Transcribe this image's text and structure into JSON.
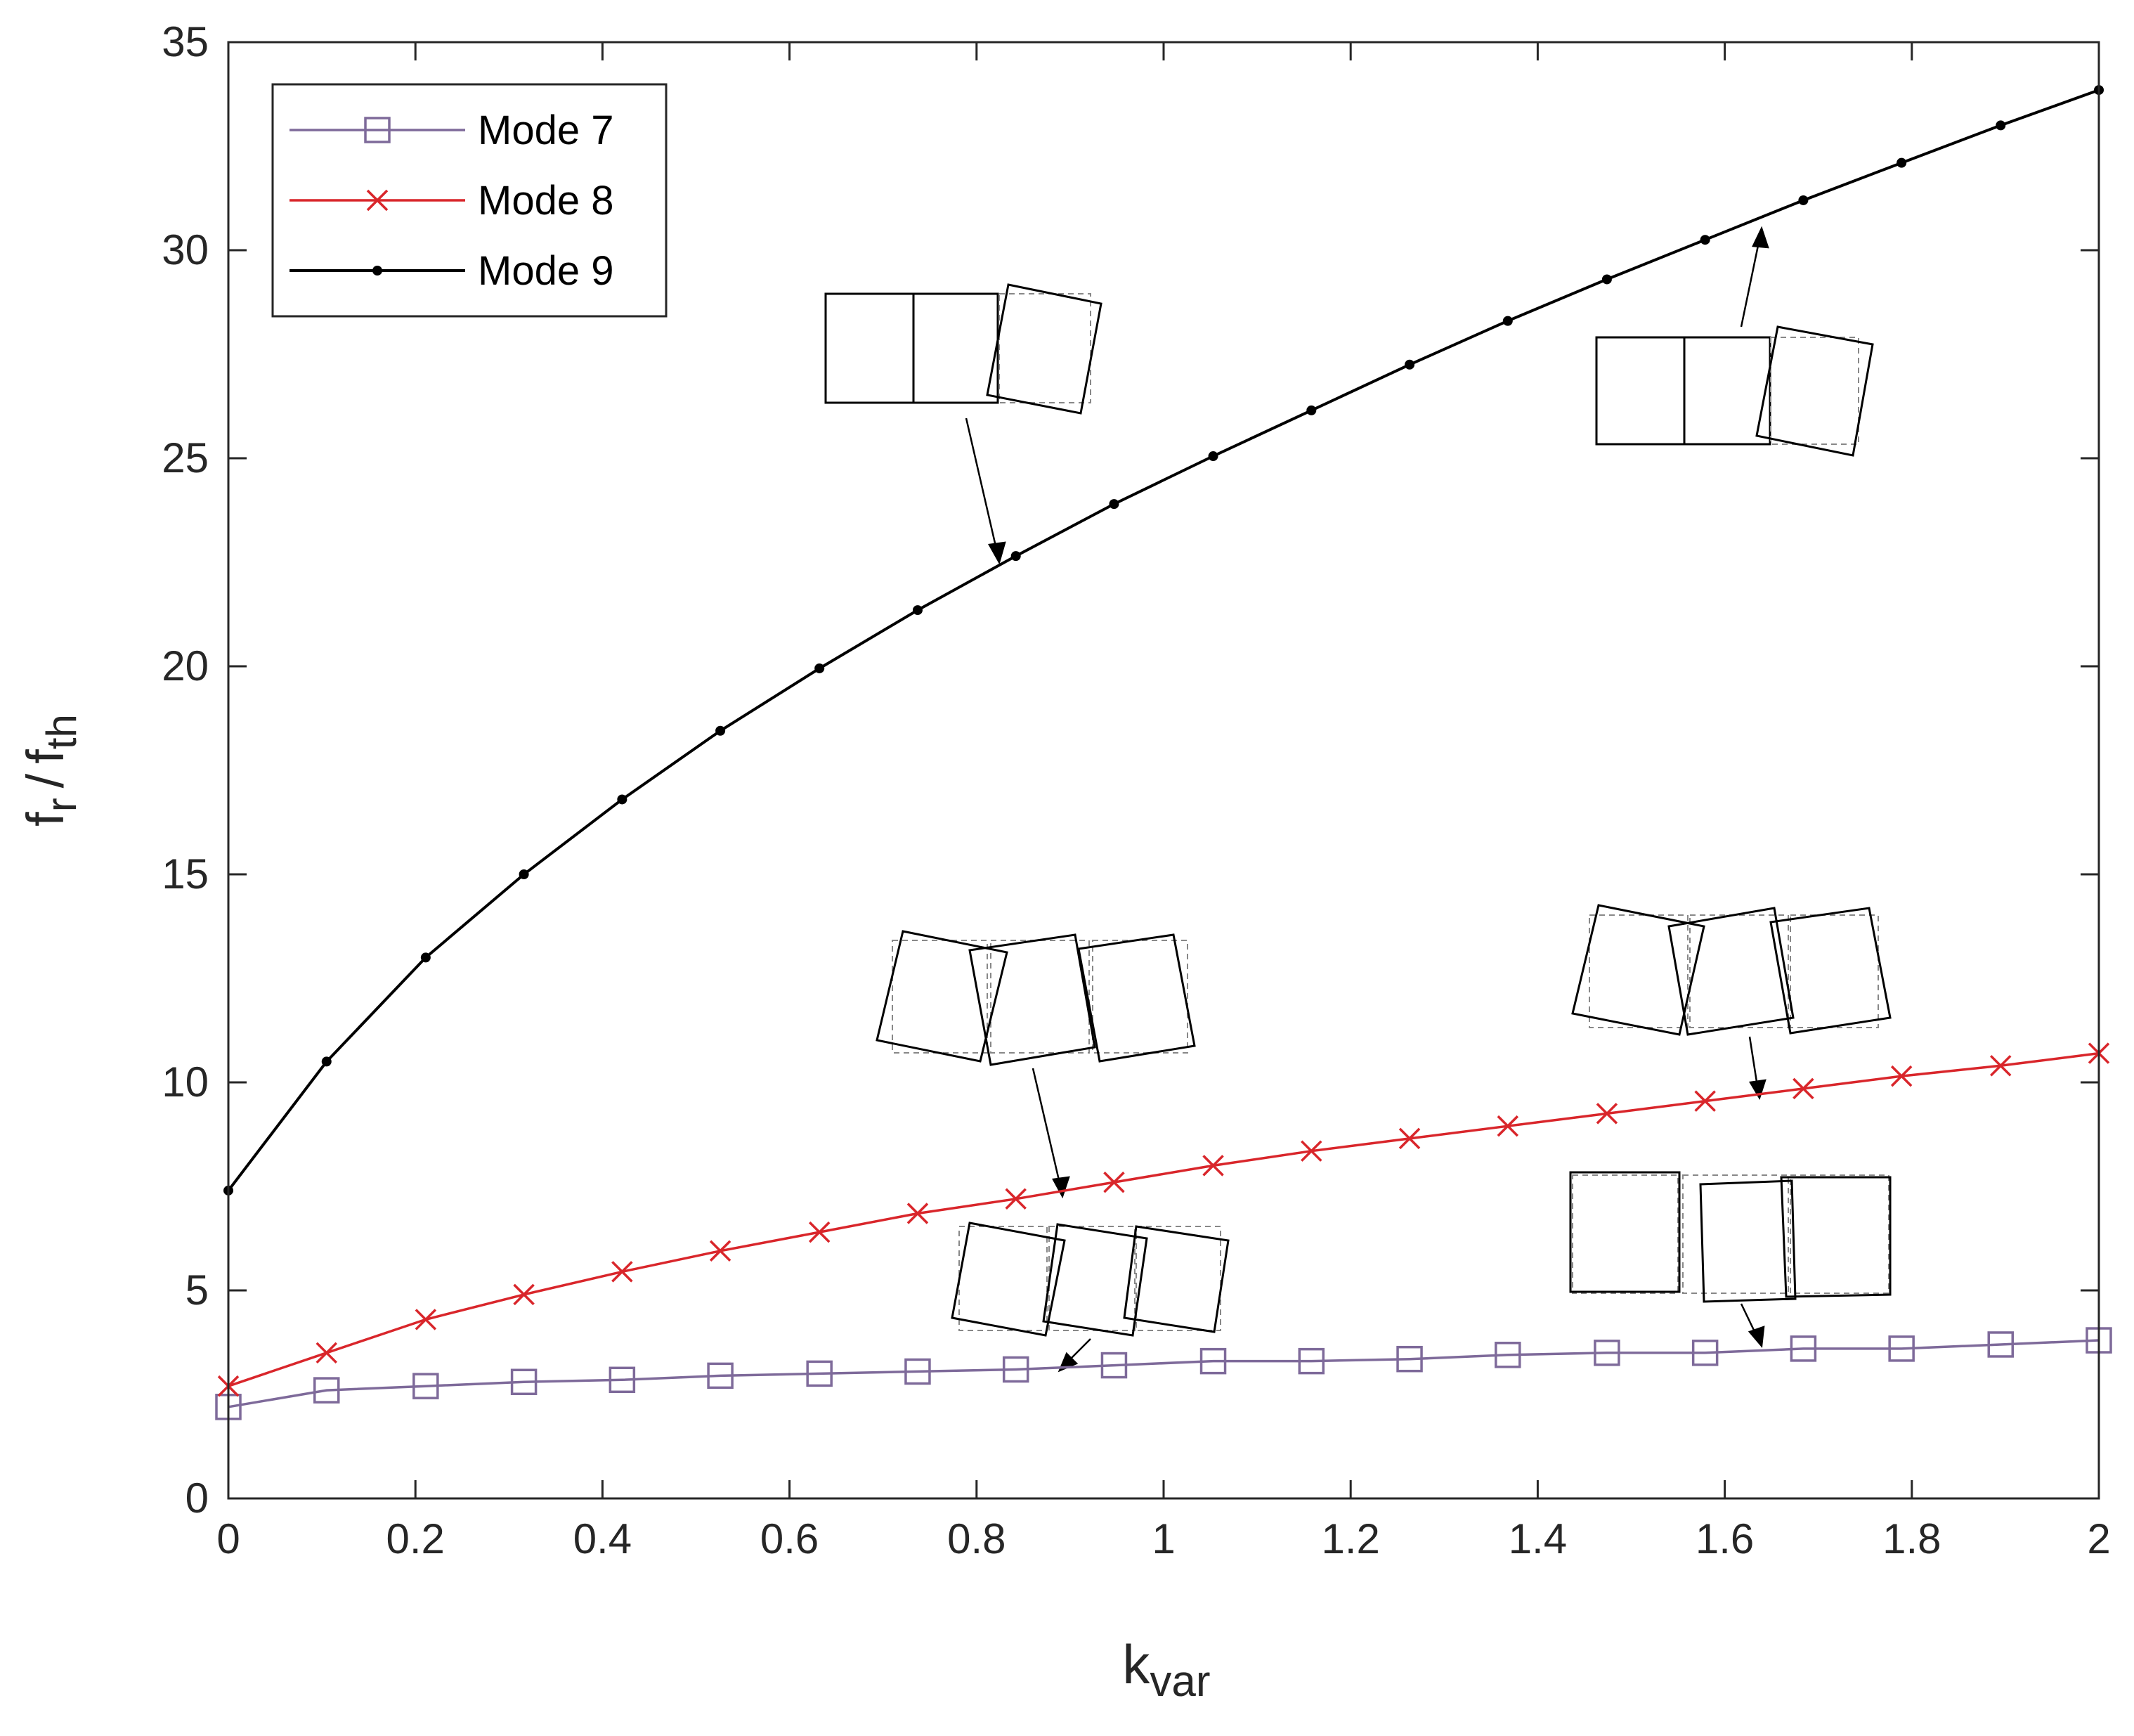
{
  "chart_data": {
    "type": "line",
    "xlabel": {
      "main": "k",
      "sub": "var"
    },
    "ylabel": {
      "f": "f",
      "r": "r",
      "slash": "/",
      "f2": "f",
      "th": "th"
    },
    "xlim": [
      0,
      2
    ],
    "ylim": [
      0,
      35
    ],
    "xticks": [
      "0",
      "0.2",
      "0.4",
      "0.6",
      "0.8",
      "1",
      "1.2",
      "1.4",
      "1.6",
      "1.8",
      "2"
    ],
    "yticks": [
      "0",
      "5",
      "10",
      "15",
      "20",
      "25",
      "30",
      "35"
    ],
    "legend": {
      "position": "top-left"
    },
    "x": [
      0,
      0.105,
      0.211,
      0.316,
      0.421,
      0.526,
      0.632,
      0.737,
      0.842,
      0.947,
      1.053,
      1.158,
      1.263,
      1.368,
      1.474,
      1.579,
      1.684,
      1.789,
      1.895,
      2.0
    ],
    "series": [
      {
        "name": "Mode 7",
        "marker": "square",
        "color": "#7E6A9A",
        "values": [
          2.2,
          2.6,
          2.7,
          2.8,
          2.85,
          2.95,
          3.0,
          3.05,
          3.1,
          3.2,
          3.3,
          3.3,
          3.35,
          3.45,
          3.5,
          3.5,
          3.6,
          3.6,
          3.7,
          3.8
        ]
      },
      {
        "name": "Mode 8",
        "marker": "x",
        "color": "#D9262B",
        "values": [
          2.7,
          3.5,
          4.3,
          4.9,
          5.45,
          5.95,
          6.4,
          6.85,
          7.2,
          7.6,
          8.0,
          8.35,
          8.65,
          8.95,
          9.25,
          9.55,
          9.85,
          10.15,
          10.4,
          10.7
        ]
      },
      {
        "name": "Mode 9",
        "marker": "dot",
        "color": "#000000",
        "values": [
          7.4,
          10.5,
          13.0,
          15.0,
          16.8,
          18.45,
          19.95,
          21.35,
          22.65,
          23.9,
          25.05,
          26.15,
          27.25,
          28.3,
          29.3,
          30.25,
          31.2,
          32.1,
          33.0,
          33.85
        ]
      }
    ]
  }
}
